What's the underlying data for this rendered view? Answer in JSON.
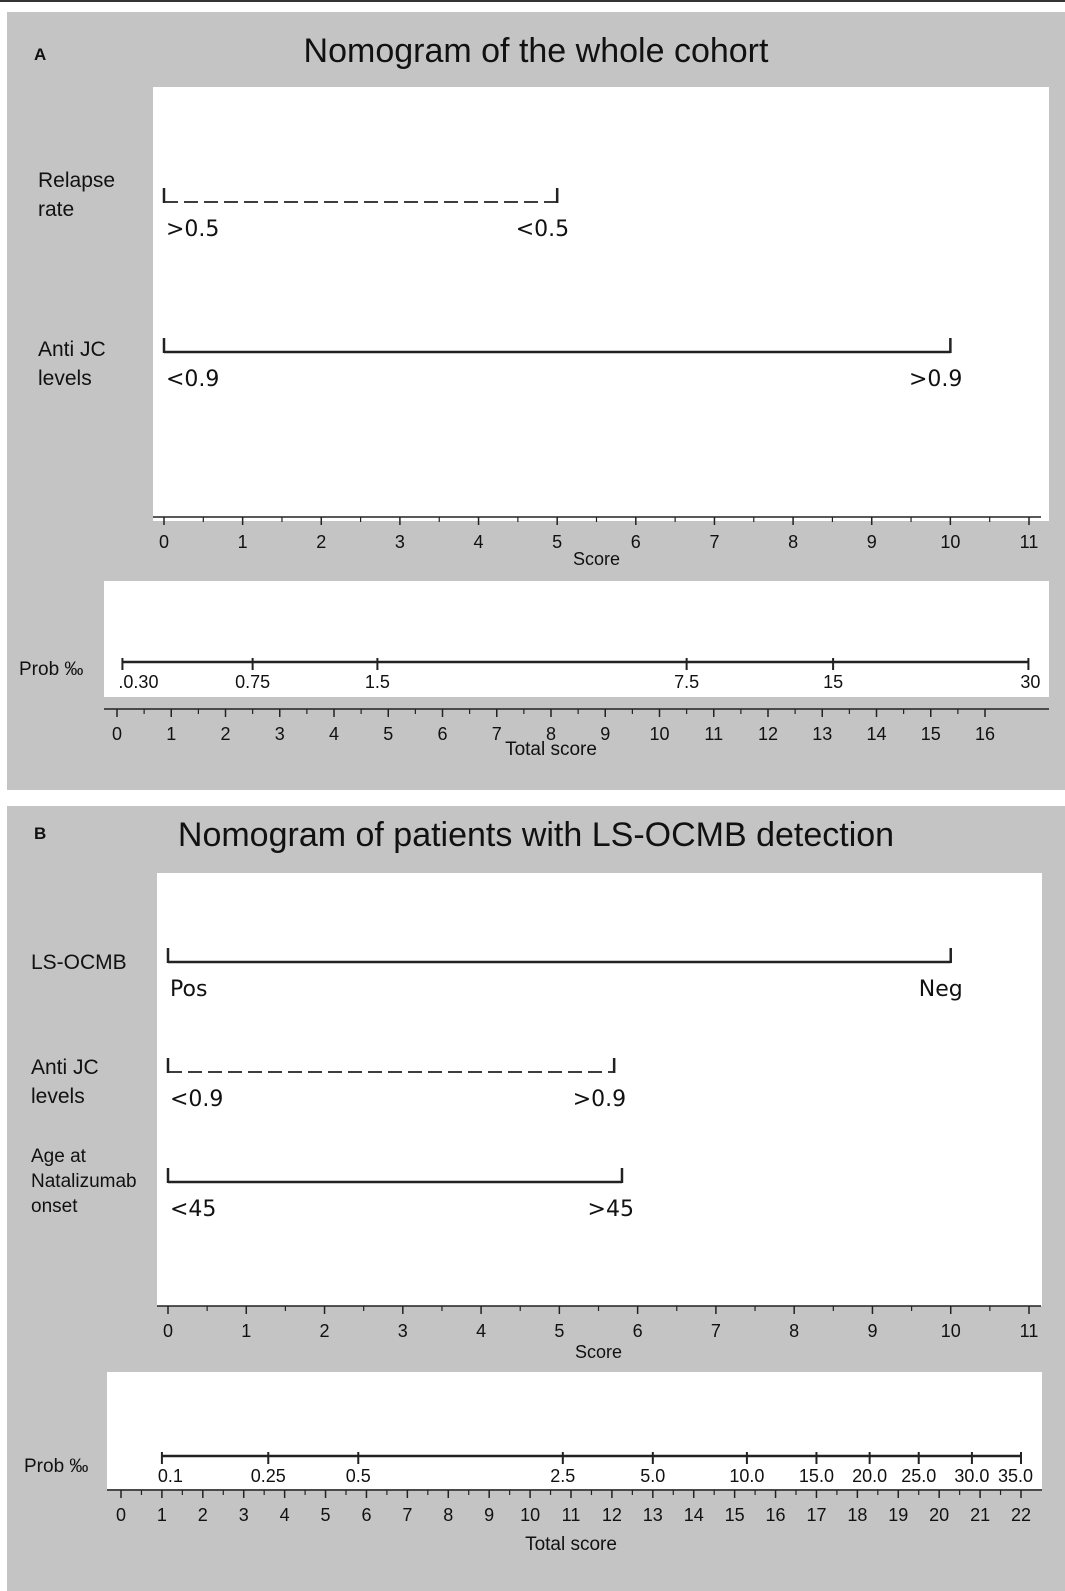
{
  "chart_data": [
    {
      "type": "nomogram",
      "panel_label": "A",
      "title": "Nomogram of the whole cohort",
      "points_axis": {
        "label": "Score",
        "min": 0,
        "max": 11,
        "ticks": [
          0,
          1,
          2,
          3,
          4,
          5,
          6,
          7,
          8,
          9,
          10,
          11
        ]
      },
      "variables": [
        {
          "name": "Relapse rate",
          "name_lines": [
            "Relapse",
            "rate"
          ],
          "style": "dashed",
          "levels": [
            {
              "label": ">0.5",
              "score": 0
            },
            {
              "label": "<0.5",
              "score": 5
            }
          ]
        },
        {
          "name": "Anti JC levels",
          "name_lines": [
            "Anti JC",
            "levels"
          ],
          "style": "solid",
          "levels": [
            {
              "label": "<0.9",
              "score": 0
            },
            {
              "label": ">0.9",
              "score": 10
            }
          ]
        }
      ],
      "total_axis": {
        "label": "Total  score",
        "min": 0,
        "max": 16,
        "ticks": [
          0,
          1,
          2,
          3,
          4,
          5,
          6,
          7,
          8,
          9,
          10,
          11,
          12,
          13,
          14,
          15,
          16
        ]
      },
      "probability_axis": {
        "label": "Prob ‰",
        "ticks": [
          {
            "label": ".0.30",
            "total": 0.1
          },
          {
            "label": "0.75",
            "total": 2.5
          },
          {
            "label": "1.5",
            "total": 4.8
          },
          {
            "label": "7.5",
            "total": 10.5
          },
          {
            "label": "15",
            "total": 13.2
          },
          {
            "label": "30",
            "total": 16.8
          }
        ]
      }
    },
    {
      "type": "nomogram",
      "panel_label": "B",
      "title": "Nomogram of patients with LS-OCMB detection",
      "points_axis": {
        "label": "Score",
        "min": 0,
        "max": 11,
        "ticks": [
          0,
          1,
          2,
          3,
          4,
          5,
          6,
          7,
          8,
          9,
          10,
          11
        ]
      },
      "variables": [
        {
          "name": "LS-OCMB",
          "name_lines": [
            "LS-OCMB"
          ],
          "style": "solid",
          "levels": [
            {
              "label": "Pos",
              "score": 0
            },
            {
              "label": "Neg",
              "score": 10
            }
          ]
        },
        {
          "name": "Anti JC levels",
          "name_lines": [
            "Anti JC",
            "levels"
          ],
          "style": "dashed",
          "levels": [
            {
              "label": "<0.9",
              "score": 0
            },
            {
              "label": ">0.9",
              "score": 5.7
            }
          ]
        },
        {
          "name": "Age at Natalizumab onset",
          "name_lines": [
            "Age at",
            "Natalizumab",
            "onset"
          ],
          "style": "solid",
          "levels": [
            {
              "label": "<45",
              "score": 0
            },
            {
              "label": ">45",
              "score": 5.8
            }
          ]
        }
      ],
      "total_axis": {
        "label": "Total score",
        "min": 0,
        "max": 22,
        "ticks": [
          0,
          1,
          2,
          3,
          4,
          5,
          6,
          7,
          8,
          9,
          10,
          11,
          12,
          13,
          14,
          15,
          16,
          17,
          18,
          19,
          20,
          21,
          22
        ]
      },
      "probability_axis": {
        "label": "Prob ‰",
        "ticks": [
          {
            "label": "0.1",
            "total": 1.0
          },
          {
            "label": "0.25",
            "total": 3.6
          },
          {
            "label": "0.5",
            "total": 5.8
          },
          {
            "label": "2.5",
            "total": 10.8
          },
          {
            "label": "5.0",
            "total": 13.0
          },
          {
            "label": "10.0",
            "total": 15.3
          },
          {
            "label": "15.0",
            "total": 17.0
          },
          {
            "label": "20.0",
            "total": 18.3
          },
          {
            "label": "25.0",
            "total": 19.5
          },
          {
            "label": "30.0",
            "total": 20.8
          },
          {
            "label": "35.0",
            "total": 22.0
          }
        ]
      }
    }
  ]
}
